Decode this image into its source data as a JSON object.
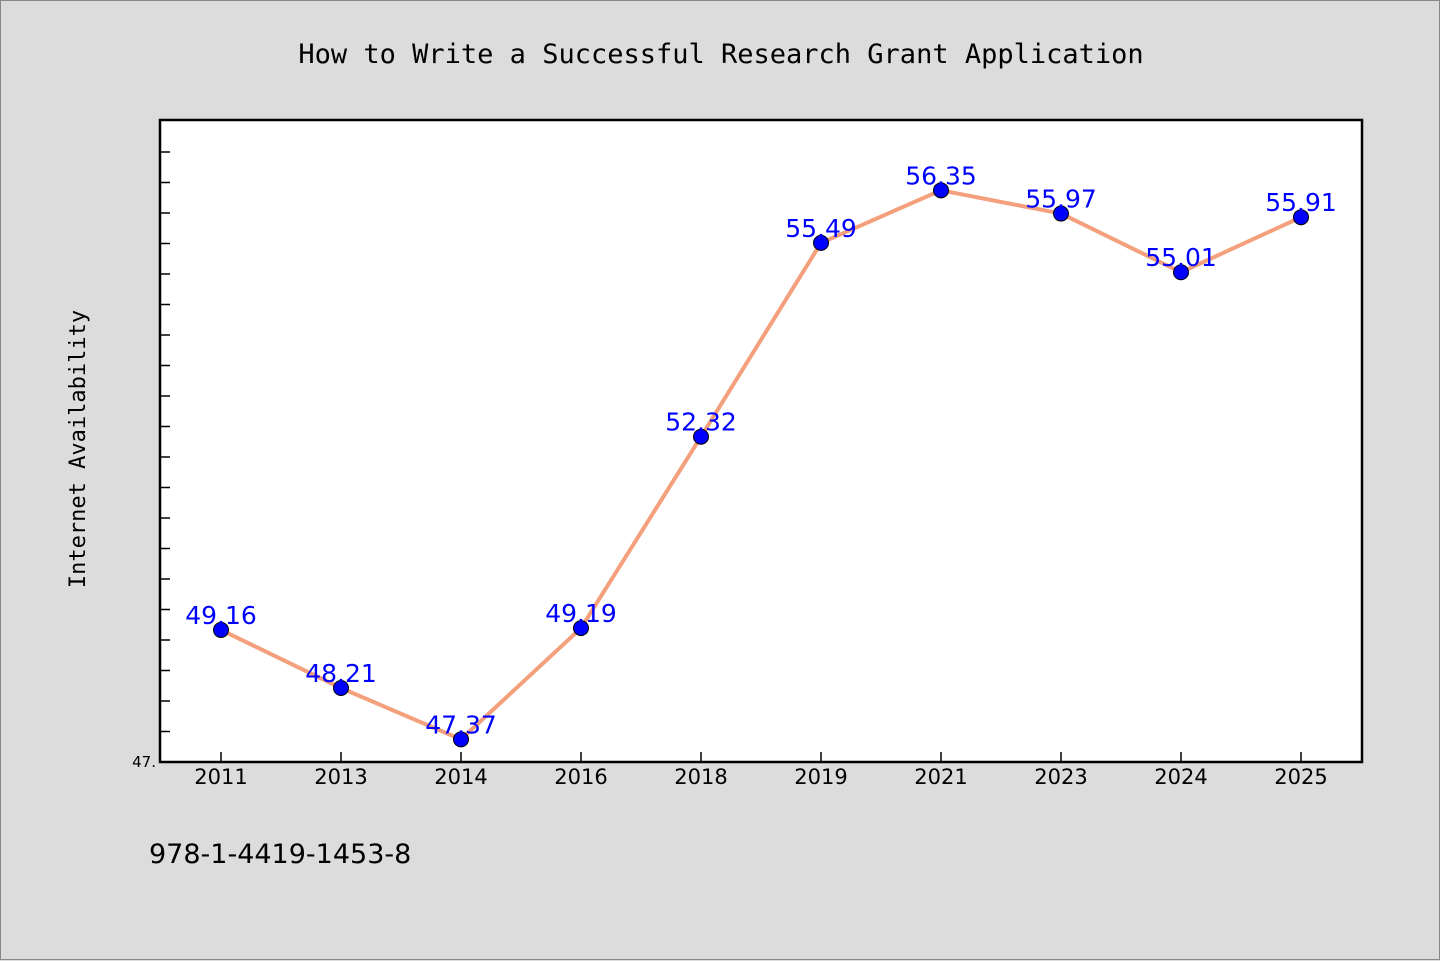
{
  "chart_data": {
    "type": "line",
    "title": "How to Write a Successful Research Grant Application",
    "xlabel": "",
    "ylabel": "Internet Availability",
    "categories": [
      "2011",
      "2013",
      "2014",
      "2016",
      "2018",
      "2019",
      "2021",
      "2023",
      "2024",
      "2025"
    ],
    "values": [
      49.16,
      48.21,
      47.37,
      49.19,
      52.32,
      55.49,
      56.35,
      55.97,
      55.01,
      55.91
    ],
    "labels": [
      "49.16",
      "48.21",
      "47.37",
      "49.19",
      "52.32",
      "55.49",
      "56.35",
      "55.97",
      "55.01",
      "55.91"
    ],
    "ylim": [
      47.0,
      57.5
    ],
    "ytick_label": "47.",
    "line_color": "#f4a07c",
    "marker_color": "#0000ff",
    "label_color": "#0000ff",
    "grid": false,
    "legend": "none"
  },
  "footer": {
    "isbn": "978-1-4419-1453-8"
  }
}
